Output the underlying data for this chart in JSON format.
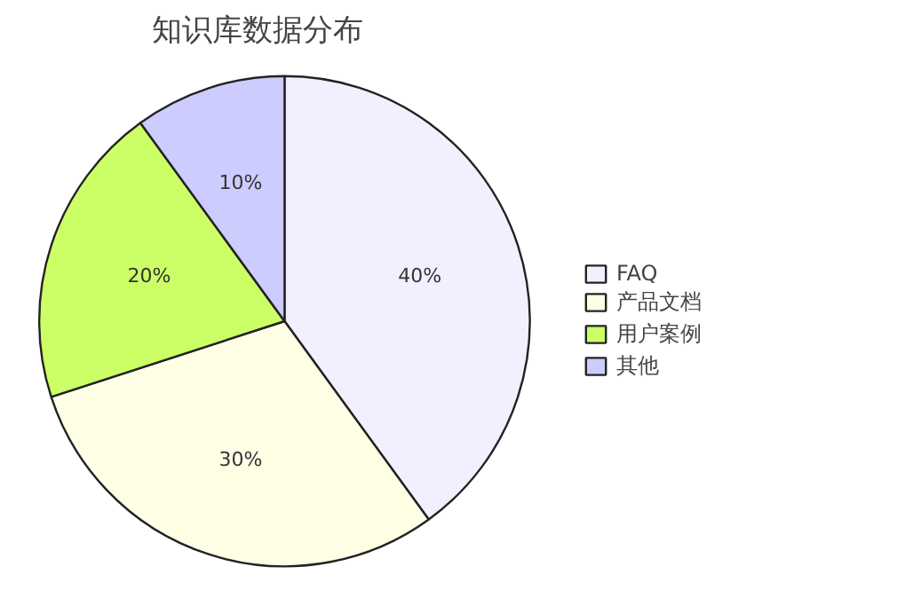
{
  "chart_data": {
    "type": "pie",
    "title": "知识库数据分布",
    "categories": [
      "FAQ",
      "产品文档",
      "用户案例",
      "其他"
    ],
    "values": [
      40,
      30,
      20,
      10
    ],
    "colors": [
      "#f0f0ff",
      "#ffffe6",
      "#ccff66",
      "#ccccff"
    ],
    "value_labels": [
      "40%",
      "30%",
      "20%",
      "10%"
    ],
    "legend": "right"
  }
}
